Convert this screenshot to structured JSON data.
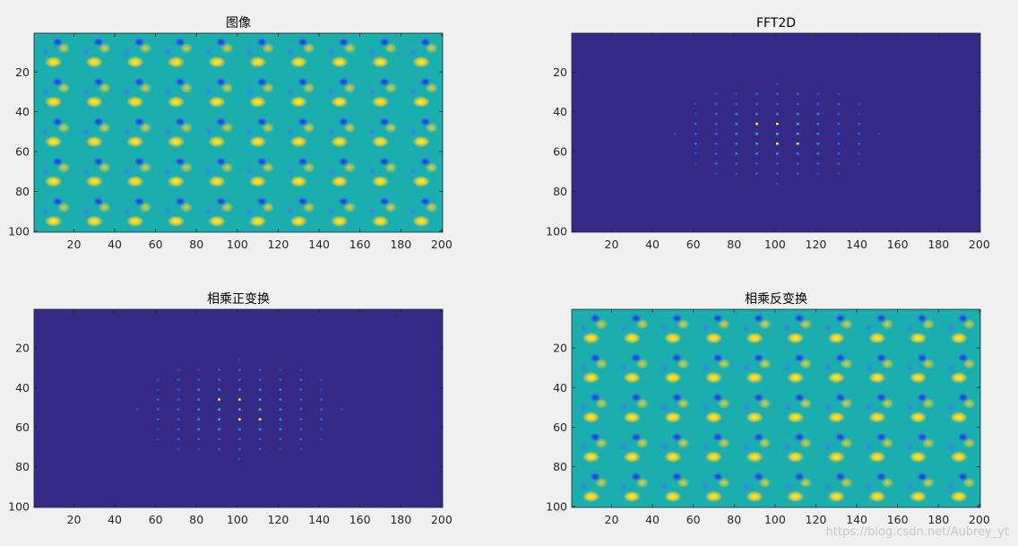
{
  "figure": {
    "background": "#f0f0f0",
    "watermark": "https://blog.csdn.net/Aubrey_yt"
  },
  "colors": {
    "low": "#352a87",
    "mid": "#1aaeaf",
    "high": "#f9fb0e",
    "axis": "#262626"
  },
  "chart_data": [
    {
      "type": "heatmap",
      "title": "图像",
      "pattern": "image-tile",
      "xlim": [
        1,
        200
      ],
      "ylim": [
        1,
        100
      ],
      "xticks": [
        20,
        40,
        60,
        80,
        100,
        120,
        140,
        160,
        180,
        200
      ],
      "yticks": [
        20,
        40,
        60,
        80,
        100
      ],
      "tile_period": [
        20,
        20
      ],
      "tile_centers_x": [
        11,
        31,
        51,
        71,
        91,
        111,
        131,
        151,
        171,
        191
      ],
      "tile_centers_y": [
        10,
        30,
        50,
        70,
        90
      ],
      "background_value": 0.5
    },
    {
      "type": "heatmap",
      "title": "FFT2D",
      "pattern": "spectrum",
      "xlim": [
        1,
        200
      ],
      "ylim": [
        1,
        100
      ],
      "xticks": [
        20,
        40,
        60,
        80,
        100,
        120,
        140,
        160,
        180,
        200
      ],
      "yticks": [
        20,
        40,
        60,
        80,
        100
      ],
      "peak_columns": [
        51,
        61,
        71,
        81,
        91,
        101,
        111,
        121,
        131,
        141,
        151
      ],
      "peak_rows": [
        26,
        31,
        36,
        41,
        46,
        51,
        56,
        61,
        66,
        71,
        76
      ],
      "bright_peaks": [
        [
          91,
          46
        ],
        [
          101,
          46
        ],
        [
          101,
          56
        ],
        [
          111,
          56
        ]
      ],
      "background_value": 0.0
    },
    {
      "type": "heatmap",
      "title": "相乘正变换",
      "pattern": "spectrum",
      "xlim": [
        1,
        200
      ],
      "ylim": [
        1,
        100
      ],
      "xticks": [
        20,
        40,
        60,
        80,
        100,
        120,
        140,
        160,
        180,
        200
      ],
      "yticks": [
        20,
        40,
        60,
        80,
        100
      ],
      "peak_columns": [
        51,
        61,
        71,
        81,
        91,
        101,
        111,
        121,
        131,
        141,
        151
      ],
      "peak_rows": [
        26,
        31,
        36,
        41,
        46,
        51,
        56,
        61,
        66,
        71,
        76
      ],
      "bright_peaks": [
        [
          91,
          46
        ],
        [
          101,
          46
        ],
        [
          101,
          56
        ],
        [
          111,
          56
        ]
      ],
      "background_value": 0.0
    },
    {
      "type": "heatmap",
      "title": "相乘反变换",
      "pattern": "image-tile",
      "xlim": [
        1,
        200
      ],
      "ylim": [
        1,
        100
      ],
      "xticks": [
        20,
        40,
        60,
        80,
        100,
        120,
        140,
        160,
        180,
        200
      ],
      "yticks": [
        20,
        40,
        60,
        80,
        100
      ],
      "tile_period": [
        20,
        20
      ],
      "tile_centers_x": [
        11,
        31,
        51,
        71,
        91,
        111,
        131,
        151,
        171,
        191
      ],
      "tile_centers_y": [
        10,
        30,
        50,
        70,
        90
      ],
      "background_value": 0.5
    }
  ]
}
